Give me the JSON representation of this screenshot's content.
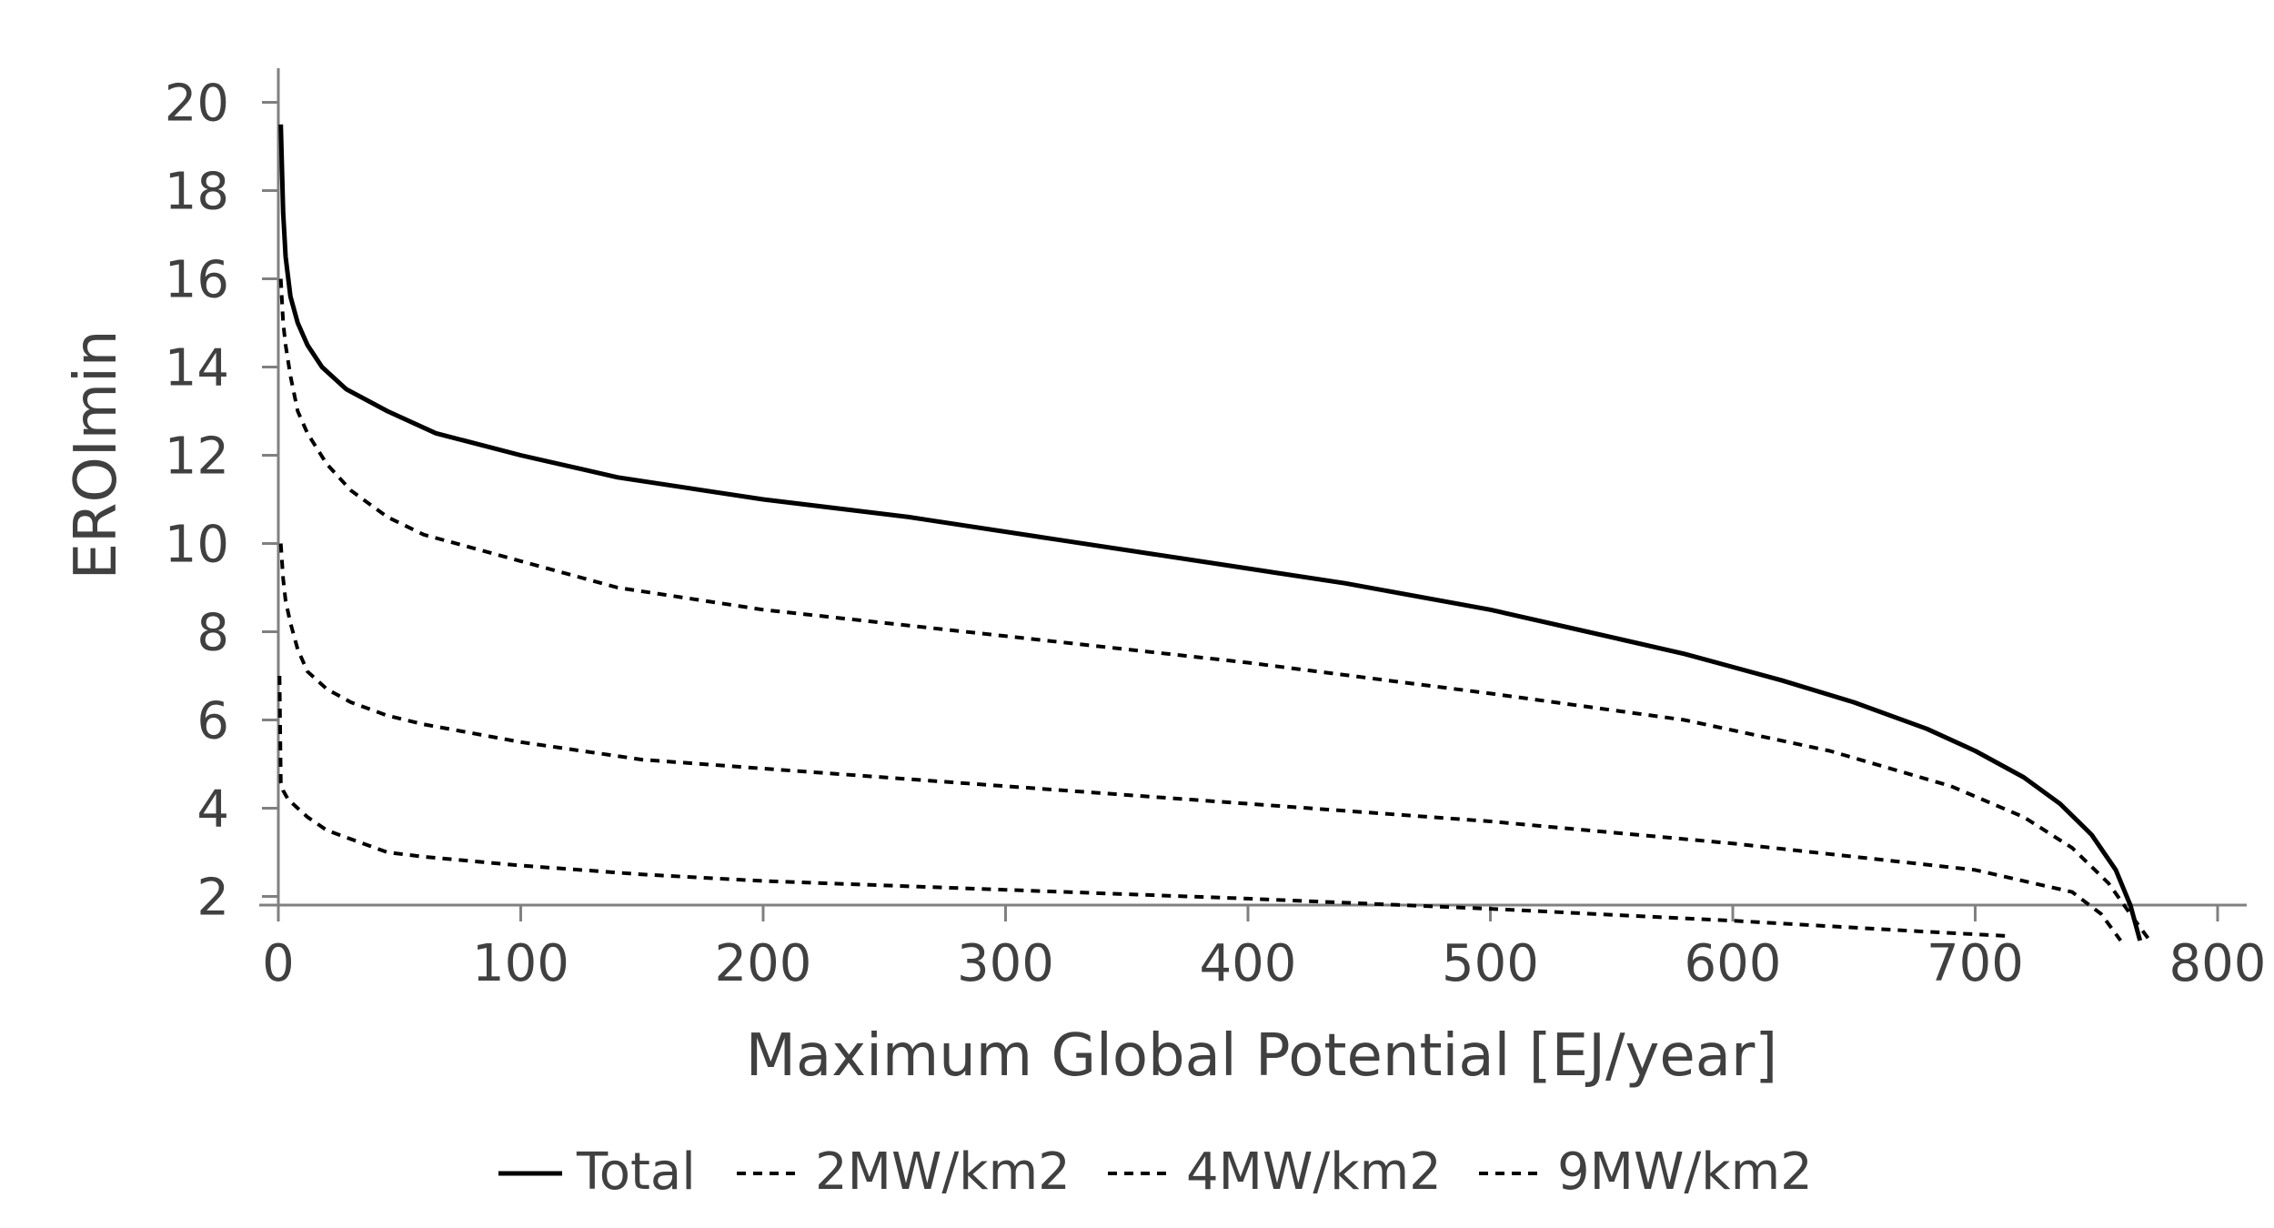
{
  "chart_data": {
    "type": "line",
    "xlabel": "Maximum Global Potential [EJ/year]",
    "ylabel": "EROImin",
    "xlim": [
      0,
      800
    ],
    "ylim": [
      1,
      20
    ],
    "xticks": [
      "0",
      "100",
      "200",
      "300",
      "400",
      "500",
      "600",
      "700",
      "800"
    ],
    "yticks": [
      "2",
      "4",
      "6",
      "8",
      "10",
      "12",
      "14",
      "16",
      "18",
      "20"
    ],
    "grid": false,
    "legend_position": "bottom",
    "series": [
      {
        "name": "Total",
        "style": "solid",
        "color": "#000000",
        "x": [
          1,
          2,
          3,
          5,
          8,
          12,
          18,
          28,
          45,
          65,
          100,
          140,
          200,
          260,
          320,
          380,
          440,
          500,
          540,
          580,
          620,
          650,
          680,
          700,
          720,
          735,
          748,
          758,
          764,
          768
        ],
        "y": [
          19.5,
          17.5,
          16.5,
          15.6,
          15.0,
          14.5,
          14.0,
          13.5,
          13.0,
          12.5,
          12.0,
          11.5,
          11.0,
          10.6,
          10.1,
          9.6,
          9.1,
          8.5,
          8.0,
          7.5,
          6.9,
          6.4,
          5.8,
          5.3,
          4.7,
          4.1,
          3.4,
          2.6,
          1.8,
          1.0
        ]
      },
      {
        "name": "2MW/km2",
        "style": "dashed",
        "color": "#000000",
        "x": [
          1,
          2,
          3,
          5,
          8,
          12,
          20,
          30,
          45,
          60,
          80,
          100,
          140,
          200,
          300,
          400,
          500,
          580,
          640,
          690,
          720,
          740,
          755,
          764,
          772
        ],
        "y": [
          16.0,
          15.0,
          14.5,
          13.8,
          13.0,
          12.5,
          11.8,
          11.2,
          10.6,
          10.2,
          9.9,
          9.6,
          9.0,
          8.5,
          7.9,
          7.3,
          6.6,
          6.0,
          5.3,
          4.5,
          3.8,
          3.1,
          2.3,
          1.6,
          1.0
        ]
      },
      {
        "name": "4MW/km2",
        "style": "dashed",
        "color": "#000000",
        "x": [
          1,
          2,
          3,
          5,
          8,
          12,
          20,
          30,
          45,
          60,
          100,
          150,
          200,
          300,
          400,
          500,
          600,
          700,
          740,
          752,
          760
        ],
        "y": [
          10.0,
          9.2,
          8.7,
          8.2,
          7.6,
          7.1,
          6.7,
          6.4,
          6.1,
          5.9,
          5.5,
          5.1,
          4.9,
          4.5,
          4.1,
          3.7,
          3.2,
          2.6,
          2.1,
          1.6,
          1.0
        ]
      },
      {
        "name": "9MW/km2",
        "style": "dashed",
        "color": "#000000",
        "x": [
          0.5,
          1,
          2,
          4,
          8,
          12,
          20,
          30,
          45,
          60,
          100,
          150,
          200,
          300,
          400,
          500,
          600,
          680,
          715
        ],
        "y": [
          7.0,
          4.6,
          4.4,
          4.2,
          4.0,
          3.8,
          3.5,
          3.3,
          3.0,
          2.9,
          2.7,
          2.5,
          2.35,
          2.15,
          1.95,
          1.72,
          1.45,
          1.2,
          1.1
        ]
      }
    ]
  }
}
